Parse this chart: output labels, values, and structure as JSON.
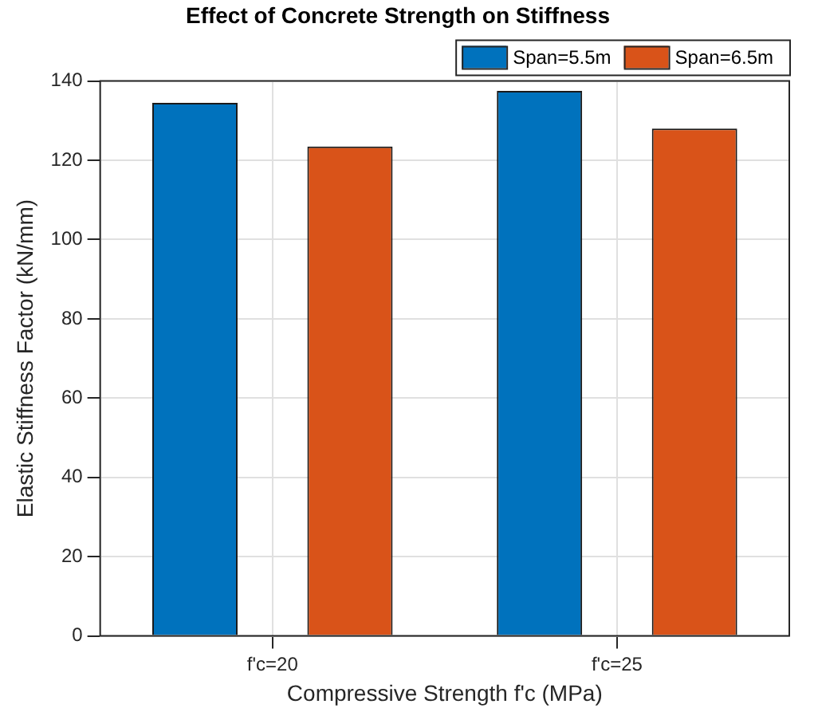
{
  "chart_data": {
    "type": "bar",
    "title": "Effect of Concrete Strength on Stiffness",
    "xlabel": "Compressive Strength f'c (MPa)",
    "ylabel": "Elastic Stiffness Factor (kN/mm)",
    "categories": [
      "f'c=20",
      "f'c=25"
    ],
    "series": [
      {
        "name": "Span=5.5m",
        "color": "#0072bd",
        "values": [
          134.5,
          137.5
        ]
      },
      {
        "name": "Span=6.5m",
        "color": "#d95319",
        "values": [
          123.5,
          128
        ]
      }
    ],
    "ylim": [
      0,
      140
    ],
    "yticks": [
      0,
      20,
      40,
      60,
      80,
      100,
      120,
      140
    ],
    "grid": true,
    "legend": "top right"
  }
}
